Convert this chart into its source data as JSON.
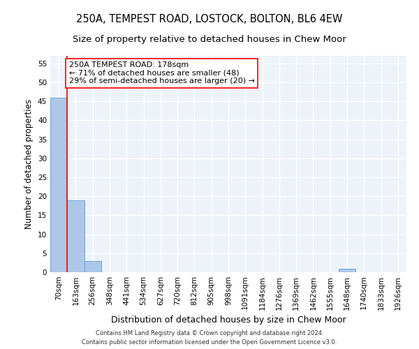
{
  "title": "250A, TEMPEST ROAD, LOSTOCK, BOLTON, BL6 4EW",
  "subtitle": "Size of property relative to detached houses in Chew Moor",
  "xlabel": "Distribution of detached houses by size in Chew Moor",
  "ylabel": "Number of detached properties",
  "bin_labels": [
    "70sqm",
    "163sqm",
    "256sqm",
    "348sqm",
    "441sqm",
    "534sqm",
    "627sqm",
    "720sqm",
    "812sqm",
    "905sqm",
    "998sqm",
    "1091sqm",
    "1184sqm",
    "1276sqm",
    "1369sqm",
    "1462sqm",
    "1555sqm",
    "1648sqm",
    "1740sqm",
    "1833sqm",
    "1926sqm"
  ],
  "bar_heights": [
    46,
    19,
    3,
    0,
    0,
    0,
    0,
    0,
    0,
    0,
    0,
    0,
    0,
    0,
    0,
    0,
    0,
    1,
    0,
    0,
    0
  ],
  "bar_color": "#aec6e8",
  "bar_edgecolor": "#5a9fd4",
  "ylim": [
    0,
    57
  ],
  "yticks": [
    0,
    5,
    10,
    15,
    20,
    25,
    30,
    35,
    40,
    45,
    50,
    55
  ],
  "red_line_x": 1,
  "annotation_line1": "250A TEMPEST ROAD: 178sqm",
  "annotation_line2": "← 71% of detached houses are smaller (48)",
  "annotation_line3": "29% of semi-detached houses are larger (20) →",
  "footer_line1": "Contains HM Land Registry data © Crown copyright and database right 2024.",
  "footer_line2": "Contains public sector information licensed under the Open Government Licence v3.0.",
  "background_color": "#eef2f9",
  "grid_color": "#ffffff",
  "title_fontsize": 10.5,
  "subtitle_fontsize": 9.5,
  "tick_fontsize": 7.5,
  "ylabel_fontsize": 8.5,
  "xlabel_fontsize": 9,
  "annotation_fontsize": 8,
  "footer_fontsize": 6.0
}
